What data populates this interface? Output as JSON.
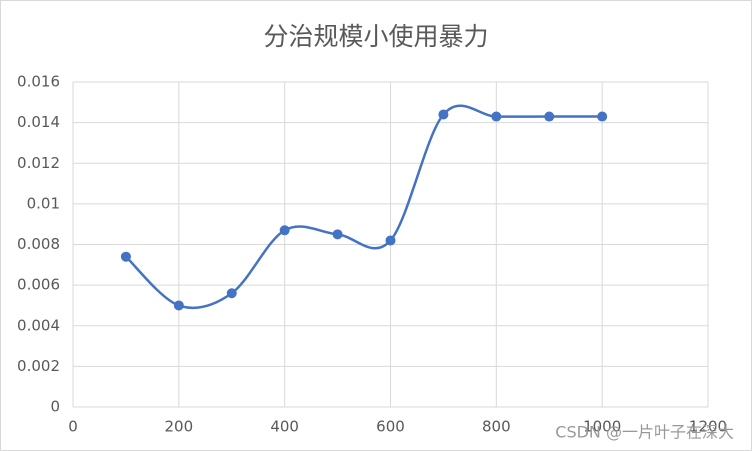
{
  "chart_data": {
    "type": "scatter-smooth",
    "title": "分治规模小使用暴力",
    "series": [
      {
        "color": "#4472c4",
        "x": [
          100,
          200,
          300,
          400,
          500,
          600,
          700,
          800,
          900,
          1000
        ],
        "values": [
          0.0074,
          0.005,
          0.0056,
          0.0087,
          0.0085,
          0.0082,
          0.0144,
          0.0143,
          0.0143,
          0.0143
        ]
      }
    ],
    "xlim": [
      0,
      1200
    ],
    "xticks": [
      0,
      200,
      400,
      600,
      800,
      1000,
      1200
    ],
    "ylim": [
      0,
      0.016
    ],
    "yticks": [
      0,
      0.002,
      0.004,
      0.006,
      0.008,
      0.01,
      0.012,
      0.014,
      0.016
    ],
    "grid": true,
    "smooth": true
  },
  "watermark": "CSDN @一片叶子在深大"
}
